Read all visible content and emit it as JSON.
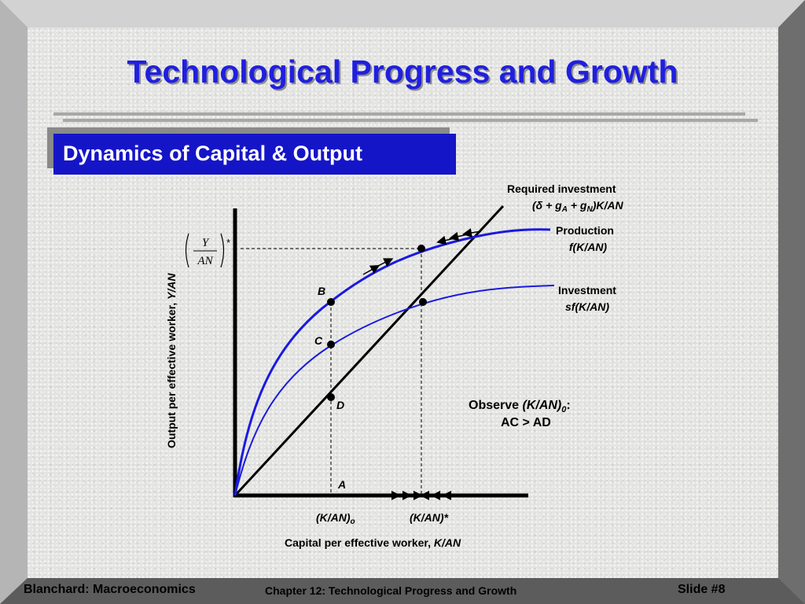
{
  "slide": {
    "title": "Technological Progress and Growth",
    "subtitle": "Dynamics of Capital & Output"
  },
  "diagram": {
    "y_axis_label": "Output per effective worker,",
    "y_axis_var": "Y/AN",
    "x_axis_label": "Capital per effective worker,",
    "x_axis_var": "K/AN",
    "y_star_num": "Y",
    "y_star_den": "AN",
    "y_star_sup": "*",
    "curves": {
      "required_line1": "Required investment",
      "required_line2": "(δ + g",
      "required_sub_a": "A",
      "required_mid": " + g",
      "required_sub_n": "N",
      "required_tail": ")K/AN",
      "production_line1": "Production",
      "production_line2": "f(K/AN)",
      "investment_line1": "Investment",
      "investment_line2": "sf(K/AN)"
    },
    "points": {
      "B": "B",
      "C": "C",
      "D": "D",
      "A": "A"
    },
    "x_ticks": {
      "k0": "(K/AN)",
      "k0_sub": "o",
      "kstar": "(K/AN)*"
    },
    "observe": {
      "line1_pre": "Observe ",
      "line1_var": "(K/AN)",
      "line1_sub": "0",
      "line1_post": ":",
      "line2": "AC > AD"
    }
  },
  "footer": {
    "left": "Blanchard: Macroeconomics",
    "center": "Chapter 12: Technological Progress and Growth",
    "right": "Slide #8"
  }
}
